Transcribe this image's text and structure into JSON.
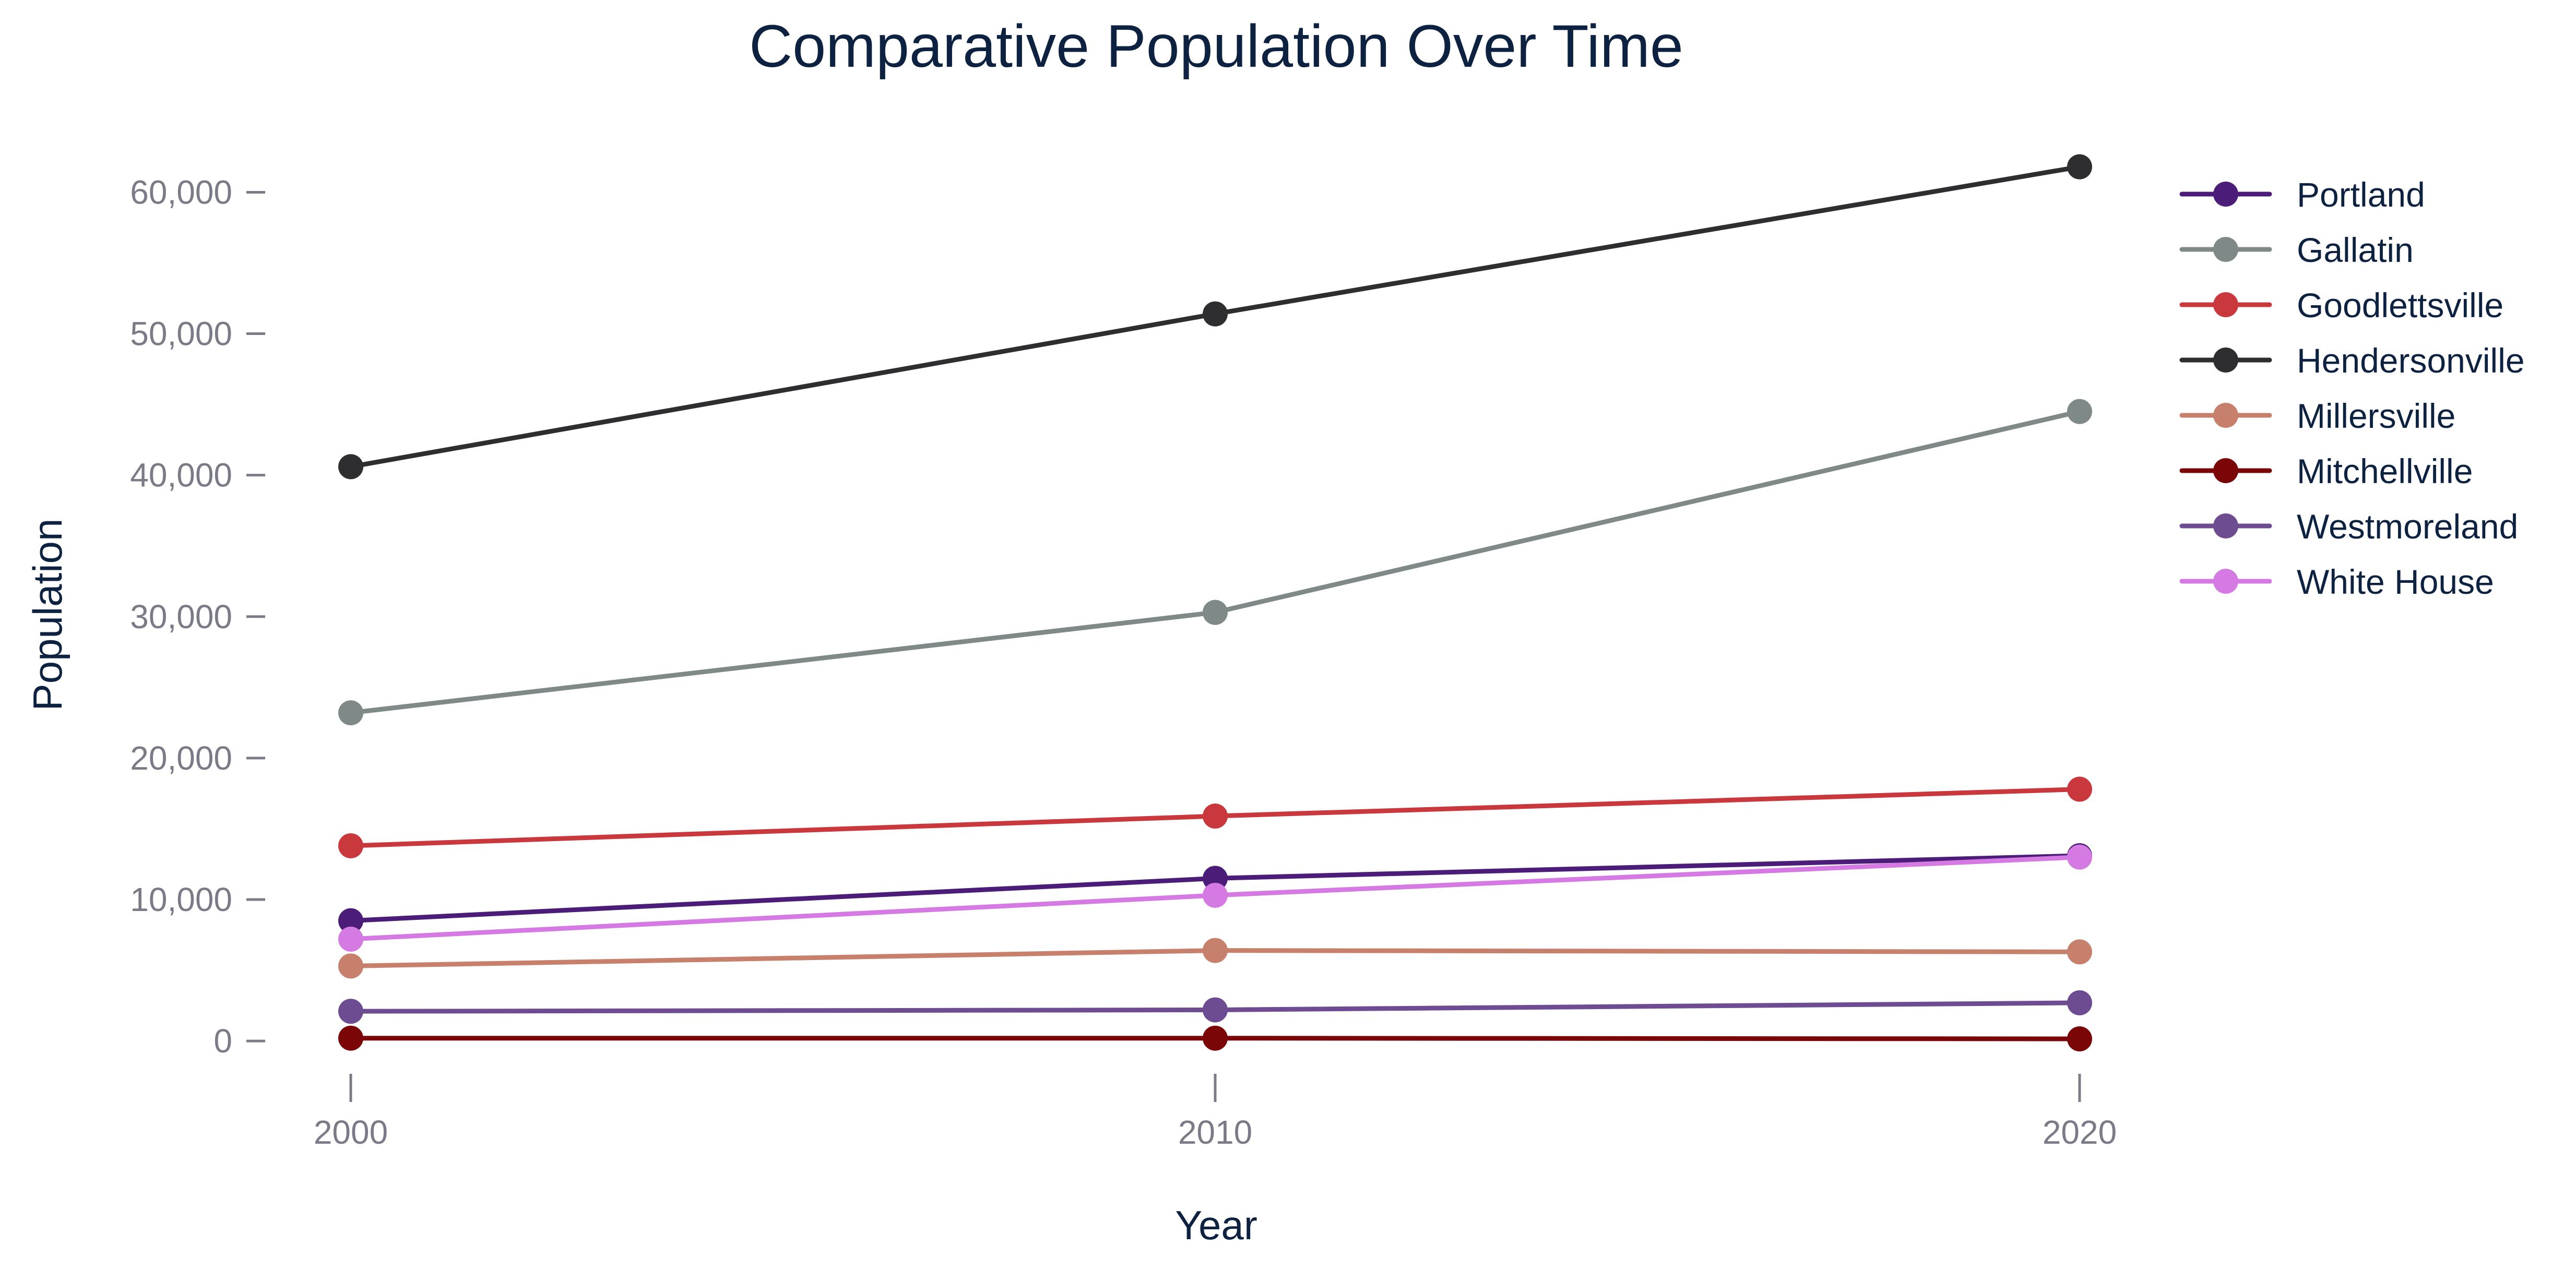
{
  "chart_data": {
    "type": "line",
    "title": "Comparative Population Over Time",
    "xlabel": "Year",
    "ylabel": "Population",
    "x": [
      2000,
      2010,
      2020
    ],
    "x_tick_labels": [
      "2000",
      "2010",
      "2020"
    ],
    "y_ticks": [
      0,
      10000,
      20000,
      30000,
      40000,
      50000,
      60000
    ],
    "y_tick_labels": [
      "0",
      "10,000",
      "20,000",
      "30,000",
      "40,000",
      "50,000",
      "60,000"
    ],
    "ylim": [
      -3500,
      64000
    ],
    "grid": false,
    "legend_position": "top-right",
    "series": [
      {
        "name": "Portland",
        "color": "#4b1c78",
        "values": [
          8500,
          11500,
          13100
        ]
      },
      {
        "name": "Gallatin",
        "color": "#7f8a88",
        "values": [
          23200,
          30300,
          44500
        ]
      },
      {
        "name": "Goodlettsville",
        "color": "#c9383d",
        "values": [
          13800,
          15900,
          17800
        ]
      },
      {
        "name": "Hendersonville",
        "color": "#2e2e30",
        "values": [
          40600,
          51400,
          61800
        ]
      },
      {
        "name": "Millersville",
        "color": "#c7806b",
        "values": [
          5300,
          6400,
          6300
        ]
      },
      {
        "name": "Mitchellville",
        "color": "#7b0607",
        "values": [
          200,
          200,
          150
        ]
      },
      {
        "name": "Westmoreland",
        "color": "#6e4c92",
        "values": [
          2100,
          2200,
          2700
        ]
      },
      {
        "name": "White House",
        "color": "#d57ae3",
        "values": [
          7200,
          10300,
          13000
        ]
      }
    ]
  }
}
